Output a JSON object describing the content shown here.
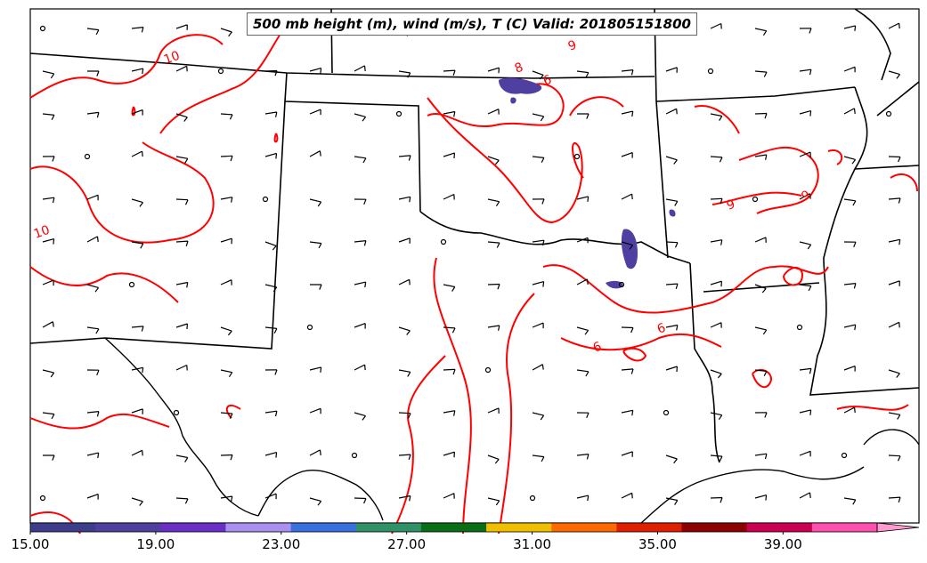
{
  "title": "500 mb height (m), wind (m/s), T (C) Valid: 201805151800",
  "contour_labels": [
    "10",
    "10",
    "9",
    "8",
    "6",
    "6",
    "6",
    "9",
    "9"
  ],
  "colorbar": {
    "tick_labels": [
      "15.00",
      "19.00",
      "23.00",
      "27.00",
      "31.00",
      "35.00",
      "39.00"
    ],
    "tick_values": [
      15,
      19,
      23,
      27,
      31,
      35,
      39
    ],
    "range": [
      15,
      42
    ],
    "colors": [
      "#3d3d8c",
      "#4f3fa0",
      "#6a2fc4",
      "#a991f0",
      "#3a6fe0",
      "#2f9166",
      "#0a6e14",
      "#f0c000",
      "#ff6a00",
      "#e01e00",
      "#8c0000",
      "#cc0050",
      "#ff50b0",
      "#ff9ad0"
    ]
  },
  "colors": {
    "contour": "#ff0000",
    "borders": "#000000",
    "wind_barbs": "#000000"
  }
}
